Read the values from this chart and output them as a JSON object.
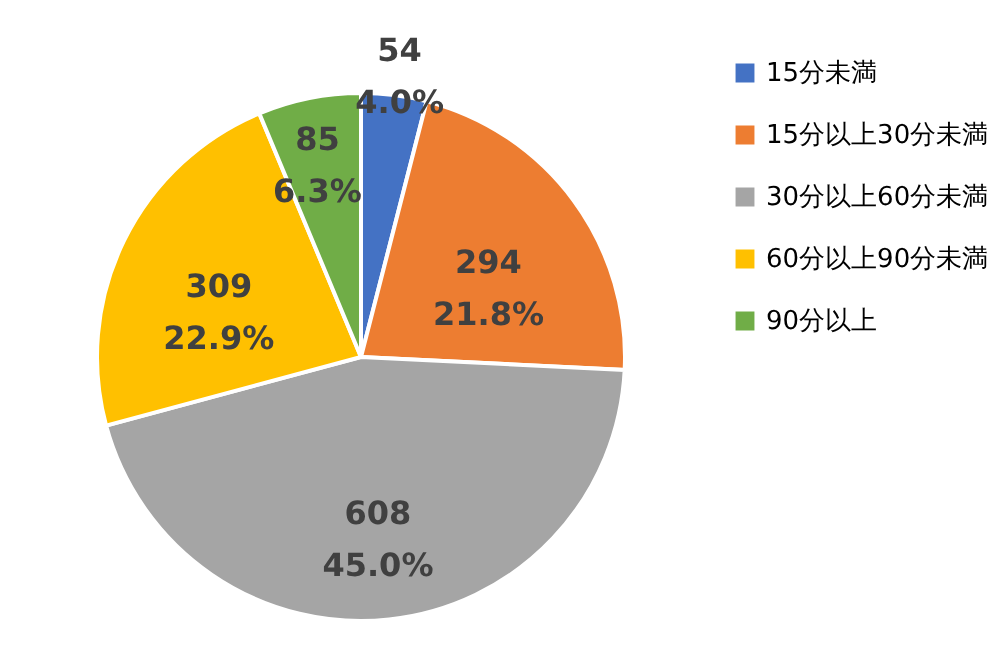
{
  "chart_data": {
    "type": "pie",
    "categories": [
      "15分未満",
      "15分以上30分未満",
      "30分以上60分未満",
      "60分以上90分未満",
      "90分以上"
    ],
    "values": [
      54,
      294,
      608,
      309,
      85
    ],
    "colors": [
      "#4472c4",
      "#ed7d31",
      "#a5a5a5",
      "#ffc000",
      "#70ad47"
    ],
    "value_labels": [
      "54\n4.0%",
      "294\n21.8%",
      "608\n45.0%",
      "309\n22.9%",
      "85\n6.3%"
    ],
    "legend": "right"
  }
}
